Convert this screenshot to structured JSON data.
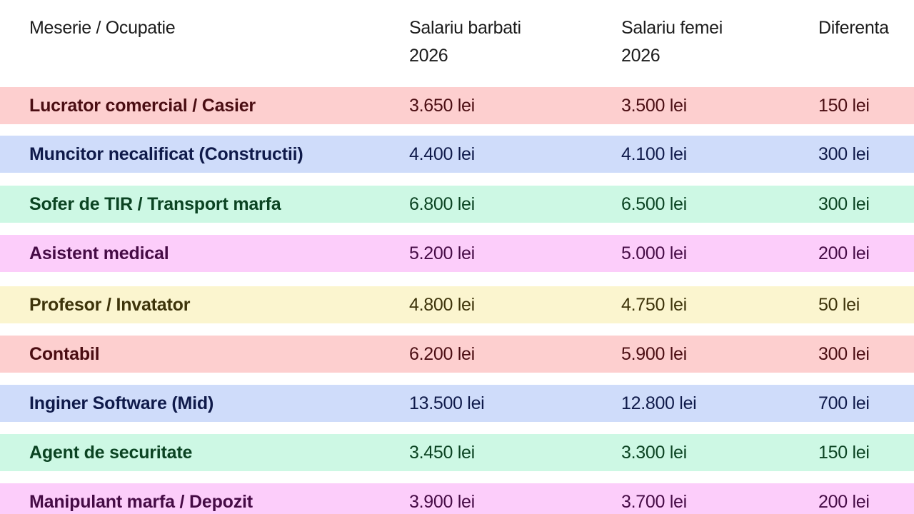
{
  "header": {
    "col_occupation": "Meserie / Ocupatie",
    "col_men": "Salariu barbati\n2026",
    "col_women": "Salariu femei\n2026",
    "col_diff": "Diferenta"
  },
  "row_styles": {
    "red": {
      "bg": "#fdcfcf",
      "fg": "#4a0d12"
    },
    "blue": {
      "bg": "#cfdcfa",
      "fg": "#0f1a4a"
    },
    "green": {
      "bg": "#cdf8e4",
      "fg": "#0b4322"
    },
    "pink": {
      "bg": "#fccdfa",
      "fg": "#450b45"
    },
    "yellow": {
      "bg": "#fbf5cf",
      "fg": "#3d330a"
    }
  },
  "rows": [
    {
      "occupation": "Lucrator comercial / Casier",
      "men": "3.650 lei",
      "women": "3.500 lei",
      "diff": "150 lei",
      "style": "red"
    },
    {
      "occupation": "Muncitor necalificat (Constructii)",
      "men": "4.400 lei",
      "women": "4.100 lei",
      "diff": "300 lei",
      "style": "blue"
    },
    {
      "occupation": "Sofer de TIR / Transport marfa",
      "men": "6.800 lei",
      "women": "6.500 lei",
      "diff": "300 lei",
      "style": "green"
    },
    {
      "occupation": "Asistent medical",
      "men": "5.200 lei",
      "women": "5.000 lei",
      "diff": "200 lei",
      "style": "pink"
    },
    {
      "occupation": "Profesor / Invatator",
      "men": "4.800 lei",
      "women": "4.750 lei",
      "diff": "50 lei",
      "style": "yellow"
    },
    {
      "occupation": "Contabil",
      "men": "6.200 lei",
      "women": "5.900 lei",
      "diff": "300 lei",
      "style": "red"
    },
    {
      "occupation": "Inginer Software (Mid)",
      "men": "13.500 lei",
      "women": "12.800 lei",
      "diff": "700 lei",
      "style": "blue"
    },
    {
      "occupation": "Agent de securitate",
      "men": "3.450 lei",
      "women": "3.300 lei",
      "diff": "150 lei",
      "style": "green"
    },
    {
      "occupation": "Manipulant marfa / Depozit",
      "men": "3.900 lei",
      "women": "3.700 lei",
      "diff": "200 lei",
      "style": "pink"
    }
  ]
}
